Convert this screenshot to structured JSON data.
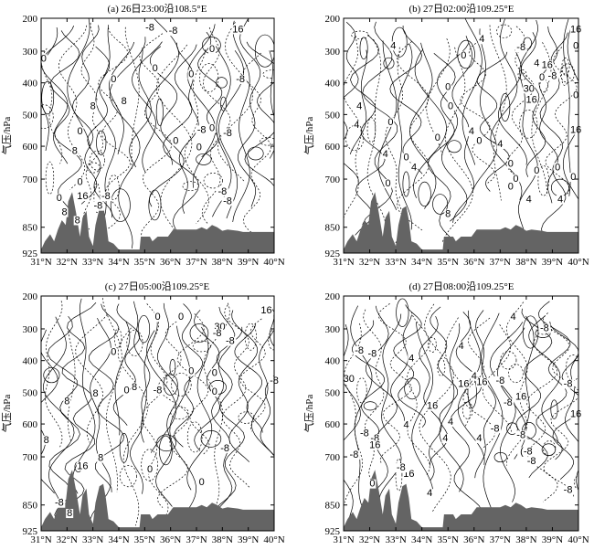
{
  "figure": {
    "ylabel": "气压/hPa",
    "contour_color": "#000000",
    "terrain_color": "#646464"
  },
  "chart_data": [
    {
      "type": "contour",
      "panel": "a",
      "title": "(a) 26日23:00沿108.5°E",
      "xlabel": "",
      "ylabel": "气压/hPa",
      "x_tick_labels": [
        "31°N",
        "32°N",
        "33°N",
        "34°N",
        "35°N",
        "36°N",
        "37°N",
        "38°N",
        "39°N",
        "40°N"
      ],
      "y_tick_labels": [
        "200",
        "300",
        "400",
        "500",
        "600",
        "700",
        "850",
        "925"
      ],
      "x": [
        31,
        32,
        33,
        34,
        35,
        36,
        37,
        38,
        39,
        40
      ],
      "y": [
        200,
        300,
        400,
        500,
        600,
        700,
        850,
        925
      ],
      "xlim": [
        31,
        40
      ],
      "ylim": [
        925,
        200
      ],
      "contour_labels": [
        {
          "text": "-8",
          "lat": 35.2,
          "p": 235
        },
        {
          "text": "-8",
          "lat": 36.1,
          "p": 245
        },
        {
          "text": "16",
          "lat": 38.6,
          "p": 240
        },
        {
          "text": "0",
          "lat": 31.1,
          "p": 330
        },
        {
          "text": "0",
          "lat": 35.4,
          "p": 360
        },
        {
          "text": "0",
          "lat": 37.6,
          "p": 300
        },
        {
          "text": "0",
          "lat": 33.8,
          "p": 395
        },
        {
          "text": "0",
          "lat": 36.8,
          "p": 380
        },
        {
          "text": "-8",
          "lat": 38.7,
          "p": 395
        },
        {
          "text": "8",
          "lat": 33.0,
          "p": 480
        },
        {
          "text": "8",
          "lat": 34.2,
          "p": 465
        },
        {
          "text": "-8",
          "lat": 37.2,
          "p": 555
        },
        {
          "text": "0",
          "lat": 37.6,
          "p": 550
        },
        {
          "text": "-8",
          "lat": 38.2,
          "p": 565
        },
        {
          "text": "0",
          "lat": 32.5,
          "p": 560
        },
        {
          "text": "0",
          "lat": 36.2,
          "p": 590
        },
        {
          "text": "0",
          "lat": 37.1,
          "p": 610
        },
        {
          "text": "8",
          "lat": 32.3,
          "p": 620
        },
        {
          "text": "0",
          "lat": 32.5,
          "p": 715
        },
        {
          "text": "0",
          "lat": 31.7,
          "p": 765
        },
        {
          "text": "16",
          "lat": 32.6,
          "p": 760
        },
        {
          "text": "-8",
          "lat": 33.5,
          "p": 760
        },
        {
          "text": "-8",
          "lat": 33.2,
          "p": 790
        },
        {
          "text": "8",
          "lat": 31.9,
          "p": 810
        },
        {
          "text": "8",
          "lat": 32.4,
          "p": 835
        },
        {
          "text": "-8",
          "lat": 38.0,
          "p": 745
        },
        {
          "text": "-8",
          "lat": 38.2,
          "p": 775
        }
      ]
    },
    {
      "type": "contour",
      "panel": "b",
      "title": "(b) 27日02:00沿109.25°E",
      "xlabel": "",
      "ylabel": "气压/hPa",
      "x_tick_labels": [
        "31°N",
        "32°N",
        "33°N",
        "34°N",
        "35°N",
        "36°N",
        "37°N",
        "38°N",
        "39°N",
        "40°N"
      ],
      "y_tick_labels": [
        "200",
        "300",
        "400",
        "500",
        "600",
        "700",
        "850",
        "925"
      ],
      "x": [
        31,
        32,
        33,
        34,
        35,
        36,
        37,
        38,
        39,
        40
      ],
      "y": [
        200,
        300,
        400,
        500,
        600,
        700,
        850,
        925
      ],
      "xlim": [
        31,
        40
      ],
      "ylim": [
        925,
        200
      ],
      "contour_labels": [
        {
          "text": "16",
          "lat": 39.9,
          "p": 240
        },
        {
          "text": "4",
          "lat": 32.9,
          "p": 290
        },
        {
          "text": "0",
          "lat": 35.6,
          "p": 320
        },
        {
          "text": "4",
          "lat": 36.3,
          "p": 270
        },
        {
          "text": "-8",
          "lat": 37.8,
          "p": 295
        },
        {
          "text": "0",
          "lat": 39.9,
          "p": 290
        },
        {
          "text": "4",
          "lat": 38.4,
          "p": 345
        },
        {
          "text": "16",
          "lat": 38.8,
          "p": 350
        },
        {
          "text": "0",
          "lat": 38.6,
          "p": 390
        },
        {
          "text": "-8",
          "lat": 39.0,
          "p": 385
        },
        {
          "text": "0",
          "lat": 35.0,
          "p": 420
        },
        {
          "text": "30",
          "lat": 38.1,
          "p": 425
        },
        {
          "text": "16",
          "lat": 38.2,
          "p": 460
        },
        {
          "text": "0",
          "lat": 39.9,
          "p": 445
        },
        {
          "text": "4",
          "lat": 31.6,
          "p": 480
        },
        {
          "text": "0",
          "lat": 35.1,
          "p": 480
        },
        {
          "text": "4",
          "lat": 31.5,
          "p": 540
        },
        {
          "text": "0",
          "lat": 32.8,
          "p": 530
        },
        {
          "text": "4",
          "lat": 35.9,
          "p": 560
        },
        {
          "text": "16",
          "lat": 39.9,
          "p": 555
        },
        {
          "text": "0",
          "lat": 34.6,
          "p": 580
        },
        {
          "text": "0",
          "lat": 36.2,
          "p": 590
        },
        {
          "text": "4",
          "lat": 37.0,
          "p": 600
        },
        {
          "text": "4",
          "lat": 32.6,
          "p": 630
        },
        {
          "text": "0",
          "lat": 33.4,
          "p": 640
        },
        {
          "text": "4",
          "lat": 33.7,
          "p": 670
        },
        {
          "text": "0",
          "lat": 37.4,
          "p": 660
        },
        {
          "text": "0",
          "lat": 38.4,
          "p": 680
        },
        {
          "text": "0",
          "lat": 39.2,
          "p": 670
        },
        {
          "text": "0",
          "lat": 37.6,
          "p": 705
        },
        {
          "text": "0",
          "lat": 37.4,
          "p": 730
        },
        {
          "text": "4",
          "lat": 38.1,
          "p": 770
        },
        {
          "text": "0",
          "lat": 32.7,
          "p": 720
        },
        {
          "text": "8",
          "lat": 35.0,
          "p": 815
        },
        {
          "text": "0",
          "lat": 39.8,
          "p": 700
        },
        {
          "text": "4",
          "lat": 39.3,
          "p": 770
        }
      ]
    },
    {
      "type": "contour",
      "panel": "c",
      "title": "(c) 27日05:00沿109.25°E",
      "xlabel": "",
      "ylabel": "气压/hPa",
      "x_tick_labels": [
        "31°N",
        "32°N",
        "33°N",
        "34°N",
        "35°N",
        "36°N",
        "37°N",
        "38°N",
        "39°N",
        "40°N"
      ],
      "y_tick_labels": [
        "200",
        "300",
        "400",
        "500",
        "600",
        "700",
        "850",
        "925"
      ],
      "x": [
        31,
        32,
        33,
        34,
        35,
        36,
        37,
        38,
        39,
        40
      ],
      "y": [
        200,
        300,
        400,
        500,
        600,
        700,
        850,
        925
      ],
      "xlim": [
        31,
        40
      ],
      "ylim": [
        925,
        200
      ],
      "contour_labels": [
        {
          "text": "16",
          "lat": 39.7,
          "p": 250
        },
        {
          "text": "0",
          "lat": 35.5,
          "p": 270
        },
        {
          "text": "0",
          "lat": 36.4,
          "p": 270
        },
        {
          "text": "30",
          "lat": 37.9,
          "p": 300
        },
        {
          "text": "-8",
          "lat": 37.8,
          "p": 320
        },
        {
          "text": "-8",
          "lat": 38.3,
          "p": 345
        },
        {
          "text": "0",
          "lat": 33.8,
          "p": 380
        },
        {
          "text": "8",
          "lat": 34.6,
          "p": 490
        },
        {
          "text": "0",
          "lat": 36.8,
          "p": 440
        },
        {
          "text": "0",
          "lat": 37.7,
          "p": 445
        },
        {
          "text": "0",
          "lat": 34.3,
          "p": 500
        },
        {
          "text": "8",
          "lat": 32.0,
          "p": 535
        },
        {
          "text": "8",
          "lat": 33.1,
          "p": 510
        },
        {
          "text": "-8",
          "lat": 35.5,
          "p": 500
        },
        {
          "text": "-8",
          "lat": 40.0,
          "p": 470
        },
        {
          "text": "0",
          "lat": 37.7,
          "p": 505
        },
        {
          "text": "8",
          "lat": 31.2,
          "p": 655
        },
        {
          "text": "16",
          "lat": 32.6,
          "p": 735
        },
        {
          "text": "8",
          "lat": 33.3,
          "p": 710
        },
        {
          "text": "0",
          "lat": 35.2,
          "p": 745
        },
        {
          "text": "0",
          "lat": 37.2,
          "p": 785
        },
        {
          "text": "-8",
          "lat": 38.1,
          "p": 680
        },
        {
          "text": "-8",
          "lat": 31.7,
          "p": 850
        },
        {
          "text": "8",
          "lat": 32.1,
          "p": 880
        }
      ]
    },
    {
      "type": "contour",
      "panel": "d",
      "title": "(d) 27日08:00沿109.25°E",
      "xlabel": "",
      "ylabel": "气压/hPa",
      "x_tick_labels": [
        "31°N",
        "32°N",
        "33°N",
        "34°N",
        "35°N",
        "36°N",
        "37°N",
        "38°N",
        "39°N",
        "40°N"
      ],
      "y_tick_labels": [
        "200",
        "300",
        "400",
        "500",
        "600",
        "700",
        "850",
        "925"
      ],
      "x": [
        31,
        32,
        33,
        34,
        35,
        36,
        37,
        38,
        39,
        40
      ],
      "y": [
        200,
        300,
        400,
        500,
        600,
        700,
        850,
        925
      ],
      "xlim": [
        31,
        40
      ],
      "ylim": [
        925,
        200
      ],
      "contour_labels": [
        {
          "text": "4",
          "lat": 37.5,
          "p": 270
        },
        {
          "text": "-8",
          "lat": 38.7,
          "p": 305
        },
        {
          "text": "-8",
          "lat": 31.6,
          "p": 375
        },
        {
          "text": "-8",
          "lat": 32.1,
          "p": 385
        },
        {
          "text": "4",
          "lat": 33.6,
          "p": 400
        },
        {
          "text": "4",
          "lat": 35.5,
          "p": 360
        },
        {
          "text": "16",
          "lat": 35.6,
          "p": 480
        },
        {
          "text": "16",
          "lat": 36.3,
          "p": 475
        },
        {
          "text": "-8",
          "lat": 37.0,
          "p": 470
        },
        {
          "text": "4",
          "lat": 36.0,
          "p": 455
        },
        {
          "text": "-8",
          "lat": 39.6,
          "p": 480
        },
        {
          "text": "30",
          "lat": 31.2,
          "p": 465
        },
        {
          "text": "16",
          "lat": 37.8,
          "p": 520
        },
        {
          "text": "-8",
          "lat": 37.3,
          "p": 540
        },
        {
          "text": "16",
          "lat": 39.9,
          "p": 575
        },
        {
          "text": "16",
          "lat": 34.4,
          "p": 550
        },
        {
          "text": "4",
          "lat": 35.1,
          "p": 600
        },
        {
          "text": "4",
          "lat": 33.4,
          "p": 610
        },
        {
          "text": "-8",
          "lat": 31.8,
          "p": 635
        },
        {
          "text": "-8",
          "lat": 32.2,
          "p": 650
        },
        {
          "text": "16",
          "lat": 32.2,
          "p": 670
        },
        {
          "text": "-8",
          "lat": 31.4,
          "p": 700
        },
        {
          "text": "4",
          "lat": 34.9,
          "p": 650
        },
        {
          "text": "4",
          "lat": 36.2,
          "p": 650
        },
        {
          "text": "-8",
          "lat": 36.8,
          "p": 620
        },
        {
          "text": "-8",
          "lat": 37.8,
          "p": 640
        },
        {
          "text": "(-8",
          "lat": 38.0,
          "p": 690
        },
        {
          "text": "-8",
          "lat": 38.2,
          "p": 720
        },
        {
          "text": "16",
          "lat": 33.5,
          "p": 760
        },
        {
          "text": "-8",
          "lat": 33.2,
          "p": 740
        },
        {
          "text": "0",
          "lat": 32.1,
          "p": 790
        },
        {
          "text": "4",
          "lat": 34.3,
          "p": 820
        },
        {
          "text": "-8",
          "lat": 39.6,
          "p": 810
        }
      ]
    }
  ]
}
